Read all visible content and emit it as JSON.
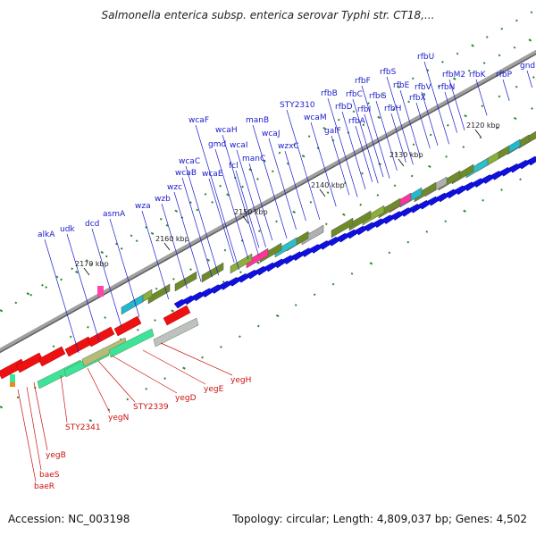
{
  "title": "Salmonella enterica subsp. enterica serovar Typhi str. CT18,...",
  "footer": {
    "accession": "Accession: NC_003198",
    "summary": "Topology: circular; Length: 4,809,037 bp; Genes: 4,502"
  },
  "colors": {
    "forward_label": "#1a1acc",
    "reverse_label": "#cc1111",
    "axis": "#808080",
    "tick": "#2e8b2e"
  },
  "kbp_labels": [
    "2120 kbp",
    "2130 kbp",
    "2140 kbp",
    "2150 kbp",
    "2160 kbp",
    "2170 kbp"
  ],
  "forward_genes": [
    "gnd",
    "rfbP",
    "rfbK",
    "rfbM2",
    "rfbU",
    "rfbN",
    "rfbV",
    "rfbX",
    "rfbE",
    "rfbS",
    "rfbH",
    "rfbG",
    "rfbI",
    "rfbC",
    "rfbF",
    "rfbA",
    "rfbD",
    "rfbB",
    "galF",
    "wcaM",
    "STY2310",
    "wzxC",
    "wcaJ",
    "manC",
    "manB",
    "fcl",
    "wcaI",
    "gmd",
    "wcaH",
    "wcaE",
    "wcaF",
    "wcaB",
    "wcaC",
    "wzb",
    "wzc",
    "wza",
    "asmA",
    "dcd",
    "udk",
    "alkA"
  ],
  "reverse_genes": [
    "yegH",
    "yegE",
    "yegD",
    "STY2339",
    "yegN",
    "STY2341",
    "yegB",
    "baeS",
    "baeR"
  ]
}
